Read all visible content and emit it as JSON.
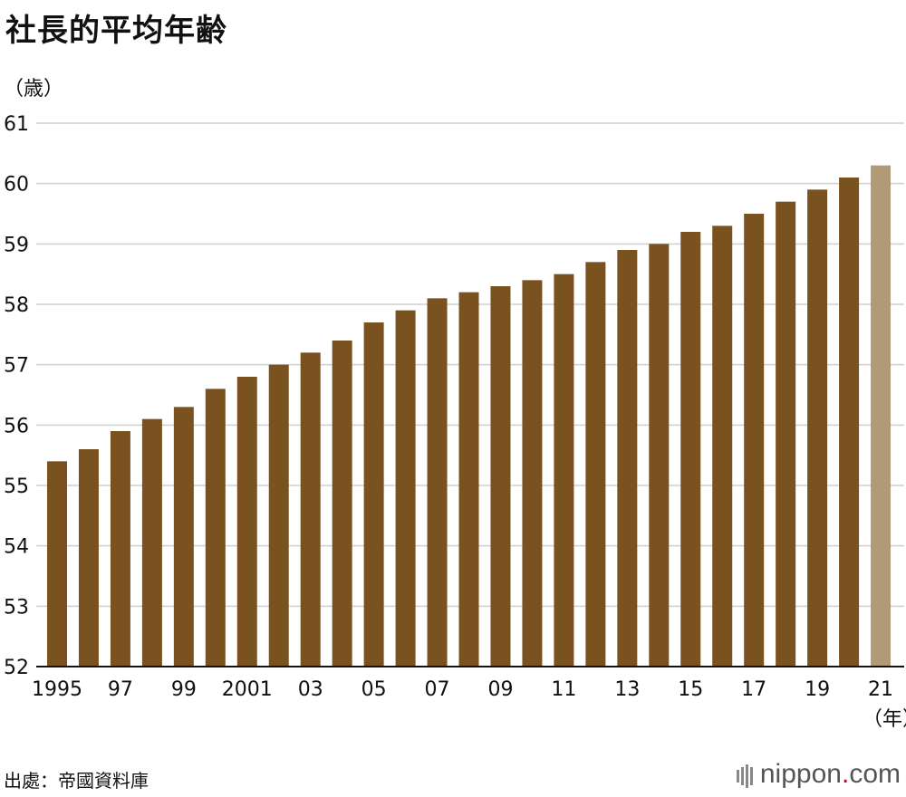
{
  "title": "社長的平均年齢",
  "chart_data": {
    "type": "bar",
    "title": "社長的平均年齢",
    "ylabel": "（歳）",
    "xlabel": "（年）",
    "ylim": [
      52,
      61
    ],
    "yticks": [
      52,
      53,
      54,
      55,
      56,
      57,
      58,
      59,
      60,
      61
    ],
    "grid": true,
    "categories": [
      "1995",
      "1996",
      "1997",
      "1998",
      "1999",
      "2000",
      "2001",
      "2002",
      "2003",
      "2004",
      "2005",
      "2006",
      "2007",
      "2008",
      "2009",
      "2010",
      "2011",
      "2012",
      "2013",
      "2014",
      "2015",
      "2016",
      "2017",
      "2018",
      "2019",
      "2020",
      "2021"
    ],
    "tick_labels": [
      "1995",
      "",
      "97",
      "",
      "99",
      "",
      "2001",
      "",
      "03",
      "",
      "05",
      "",
      "07",
      "",
      "09",
      "",
      "11",
      "",
      "13",
      "",
      "15",
      "",
      "17",
      "",
      "19",
      "",
      "21"
    ],
    "values": [
      55.4,
      55.6,
      55.9,
      56.1,
      56.3,
      56.6,
      56.8,
      57.0,
      57.2,
      57.4,
      57.7,
      57.9,
      58.1,
      58.2,
      58.3,
      58.4,
      58.5,
      58.7,
      58.9,
      59.0,
      59.2,
      59.3,
      59.5,
      59.7,
      59.9,
      60.1,
      60.3
    ],
    "colors": {
      "bar": "#7a5220",
      "highlight": "#b09a78",
      "grid": "#cfcfcf",
      "axis": "#111111"
    },
    "highlight_index": 26
  },
  "footer": {
    "source": "出處：帝國資料庫",
    "brand_main": "nippon",
    "brand_dot": ".",
    "brand_tld": "com"
  }
}
